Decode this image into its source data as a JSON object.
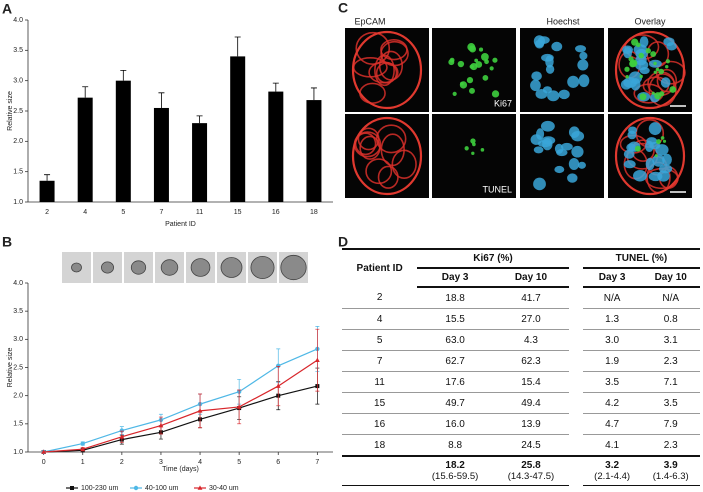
{
  "chart_data": [
    {
      "type": "bar",
      "panel": "A",
      "xlabel": "Patient ID",
      "ylabel": "Relative size",
      "color": "#000000",
      "categories": [
        "2",
        "4",
        "5",
        "7",
        "11",
        "15",
        "16",
        "18"
      ],
      "values": [
        1.35,
        2.72,
        3.0,
        2.55,
        2.3,
        3.4,
        2.82,
        2.68
      ],
      "errors": [
        0.1,
        0.18,
        0.17,
        0.25,
        0.12,
        0.32,
        0.14,
        0.2
      ],
      "ylim": [
        1.0,
        4.0
      ],
      "yticks": [
        {
          "value": 1,
          "label": "1.0"
        },
        {
          "value": 1.5,
          "label": "1.5"
        },
        {
          "value": 2,
          "label": "2.0"
        },
        {
          "value": 2.5,
          "label": "2.5"
        },
        {
          "value": 3,
          "label": "3.0"
        },
        {
          "value": 3.5,
          "label": "3.5"
        },
        {
          "value": 4,
          "label": "4.0"
        }
      ],
      "grid": false
    },
    {
      "type": "line",
      "panel": "B",
      "xlabel": "Time (days)",
      "ylabel": "Relative size",
      "x": [
        0,
        1,
        2,
        3,
        4,
        5,
        6,
        7
      ],
      "xlim": [
        -0.4,
        7.4
      ],
      "xticks": [
        0,
        1,
        2,
        3,
        4,
        5,
        6,
        7
      ],
      "ylim": [
        1.0,
        4.0
      ],
      "yticks": [
        {
          "value": 1,
          "label": "1.0"
        },
        {
          "value": 1.5,
          "label": "1.5"
        },
        {
          "value": 2,
          "label": "2.0"
        },
        {
          "value": 2.5,
          "label": "2.5"
        },
        {
          "value": 3,
          "label": "3.0"
        },
        {
          "value": 3.5,
          "label": "3.5"
        },
        {
          "value": 4,
          "label": "4.0"
        }
      ],
      "grid": false,
      "legend": "bottom",
      "series": [
        {
          "name": "100-230 um",
          "color": "#111111",
          "marker": "square",
          "values": [
            1.0,
            1.03,
            1.22,
            1.35,
            1.58,
            1.78,
            2.0,
            2.17
          ],
          "errors": [
            0,
            0.03,
            0.08,
            0.12,
            0.15,
            0.2,
            0.25,
            0.32
          ]
        },
        {
          "name": "40-100 um",
          "color": "#4fb8e6",
          "marker": "circle",
          "values": [
            1.0,
            1.15,
            1.38,
            1.57,
            1.85,
            2.07,
            2.53,
            2.83
          ],
          "errors": [
            0,
            0.03,
            0.07,
            0.1,
            0.18,
            0.22,
            0.3,
            0.4
          ]
        },
        {
          "name": "30-40 um",
          "color": "#d8262b",
          "marker": "triangle",
          "values": [
            1.0,
            1.05,
            1.27,
            1.47,
            1.73,
            1.8,
            2.17,
            2.63
          ],
          "errors": [
            0,
            0.03,
            0.1,
            0.15,
            0.3,
            0.3,
            0.35,
            0.55
          ]
        }
      ]
    }
  ],
  "images": {
    "panel": "C",
    "columns": [
      "EpCAM",
      "Hoechst",
      "Overlay"
    ],
    "row_labels": [
      "Ki67",
      "TUNEL"
    ]
  },
  "table": {
    "panel": "D",
    "patient_header": "Patient ID",
    "groups": [
      "Ki67 (%)",
      "TUNEL (%)"
    ],
    "subheaders": [
      "Day 3",
      "Day 10",
      "Day 3",
      "Day 10"
    ],
    "rows": [
      [
        "2",
        "18.8",
        "41.7",
        "N/A",
        "N/A"
      ],
      [
        "4",
        "15.5",
        "27.0",
        "1.3",
        "0.8"
      ],
      [
        "5",
        "63.0",
        "4.3",
        "3.0",
        "3.1"
      ],
      [
        "7",
        "62.7",
        "62.3",
        "1.9",
        "2.3"
      ],
      [
        "11",
        "17.6",
        "15.4",
        "3.5",
        "7.1"
      ],
      [
        "15",
        "49.7",
        "49.4",
        "4.2",
        "3.5"
      ],
      [
        "16",
        "16.0",
        "13.9",
        "4.7",
        "7.9"
      ],
      [
        "18",
        "8.8",
        "24.5",
        "4.1",
        "2.3"
      ]
    ],
    "summary": [
      [
        "18.2",
        "(15.6-59.5)"
      ],
      [
        "25.8",
        "(14.3-47.5)"
      ],
      [
        "3.2",
        "(2.1-4.4)"
      ],
      [
        "3.9",
        "(1.4-6.3)"
      ]
    ]
  }
}
